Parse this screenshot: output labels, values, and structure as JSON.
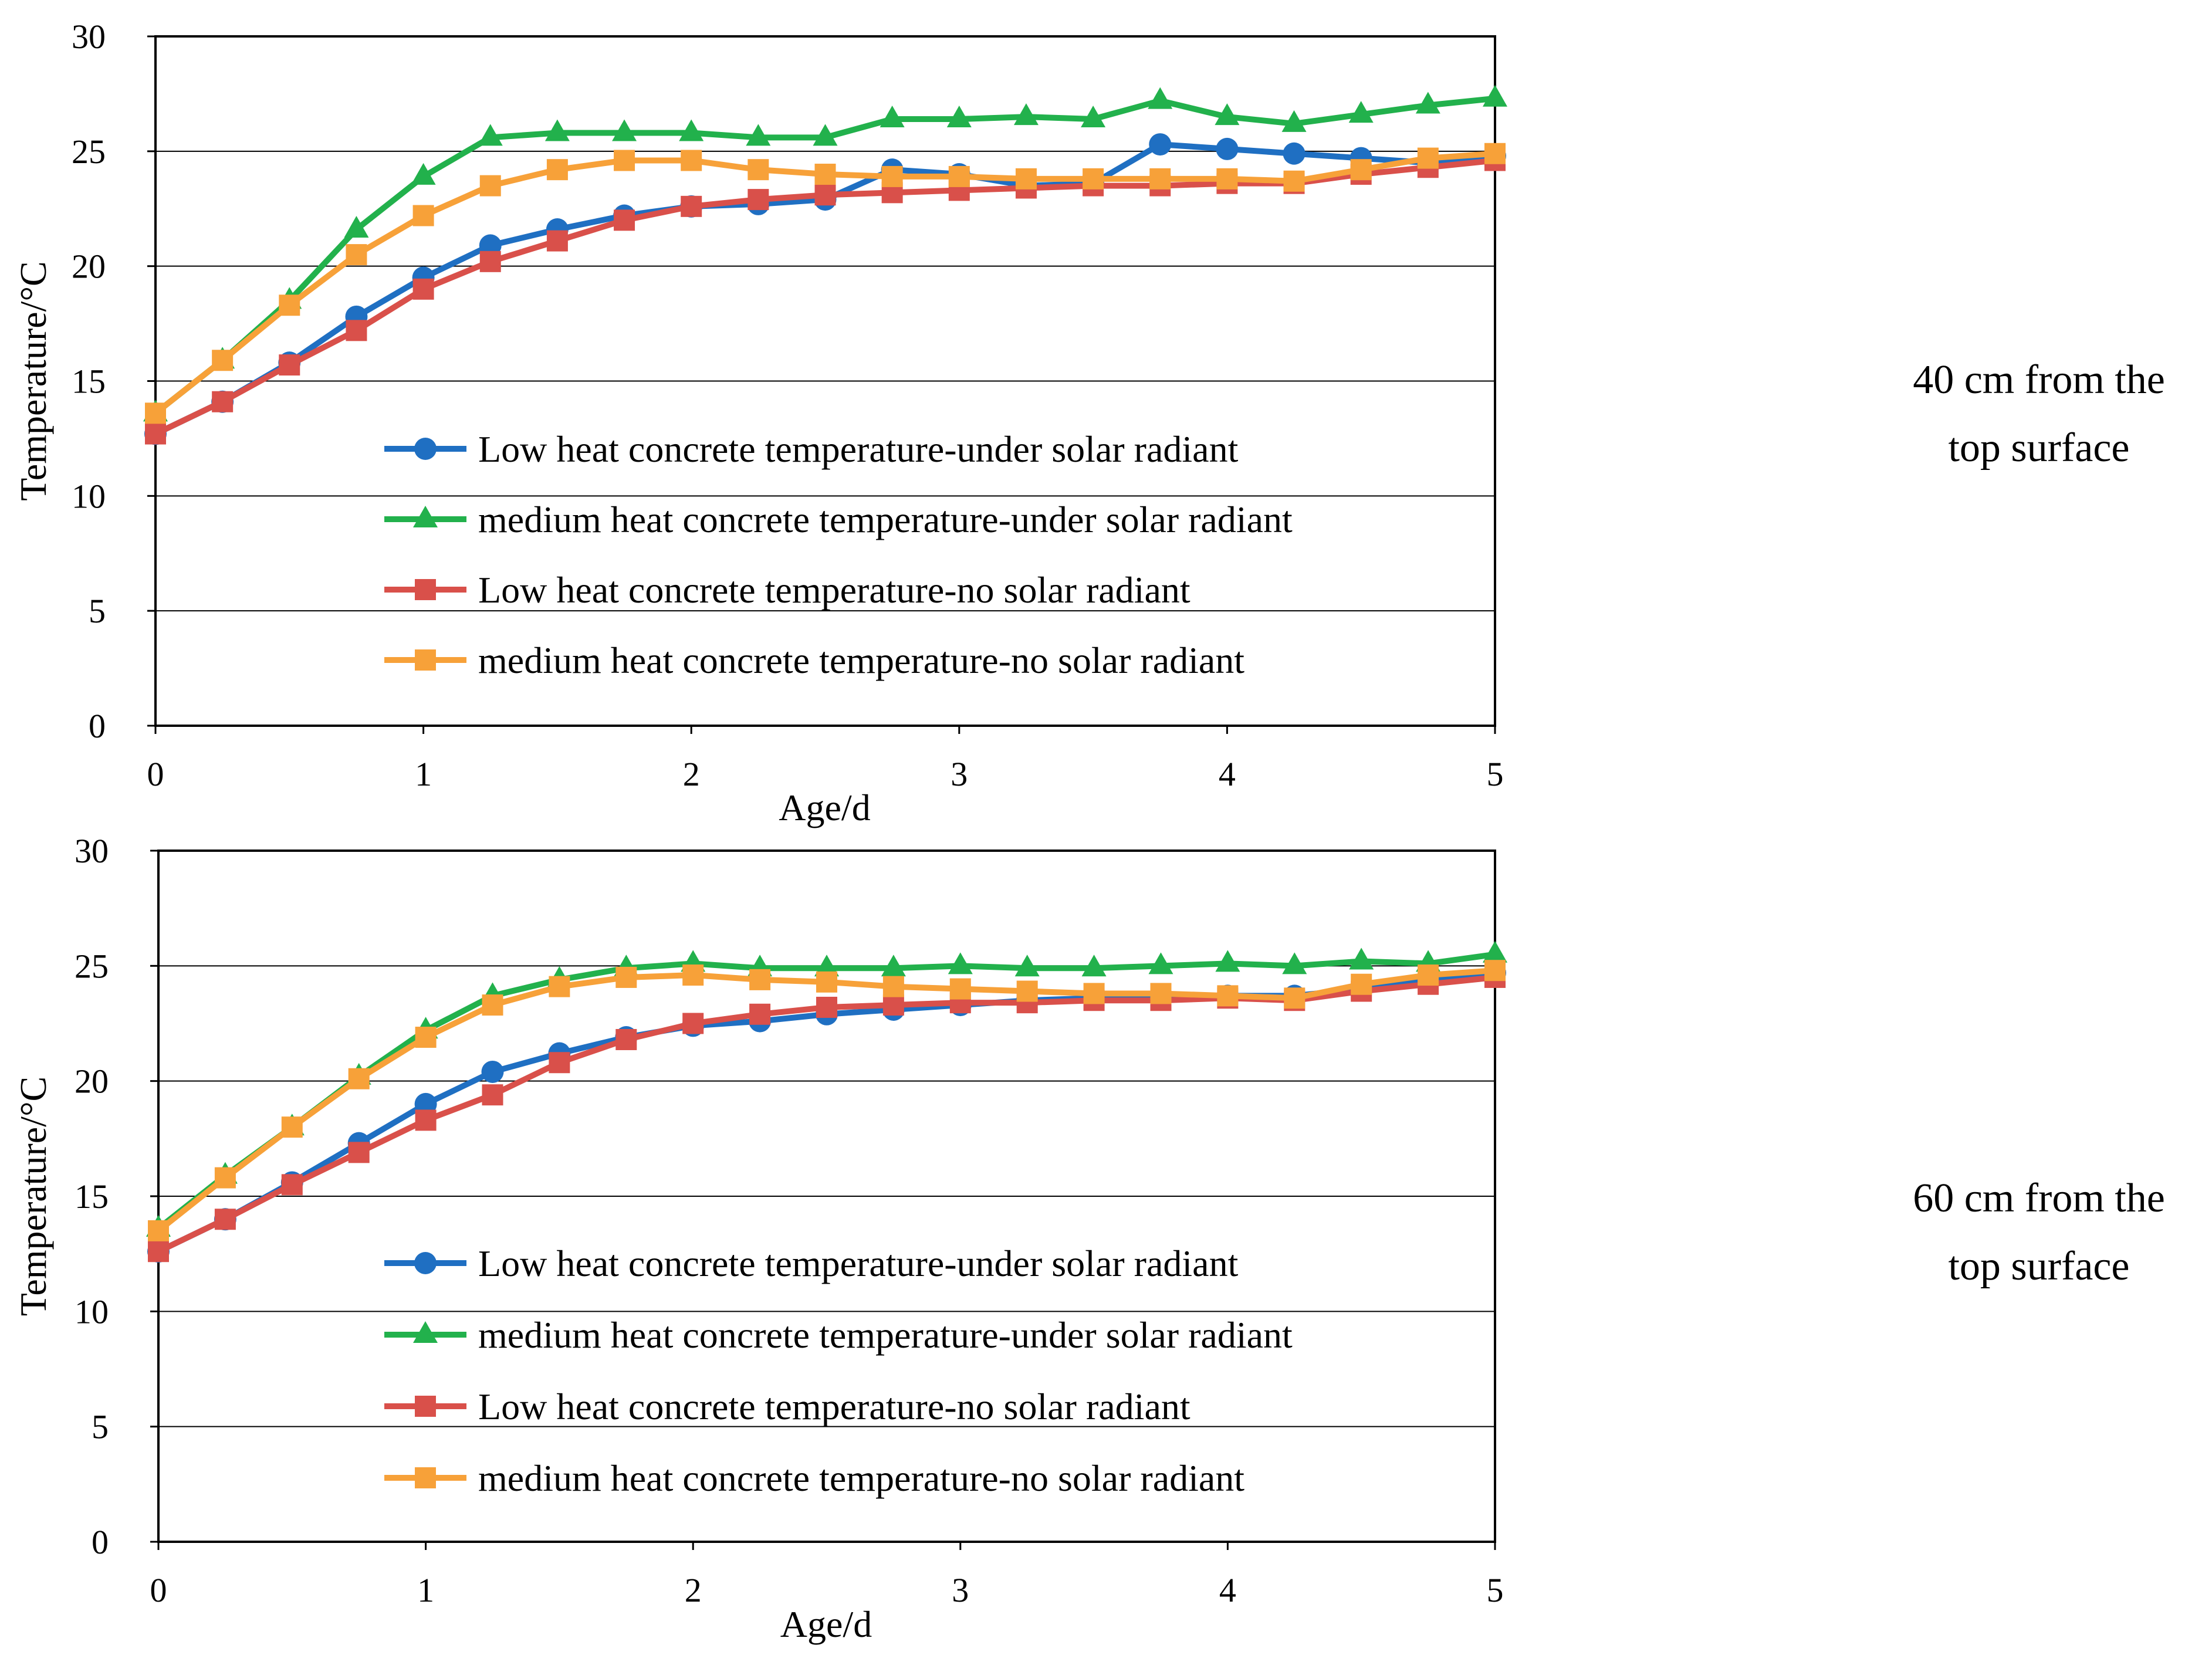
{
  "chart_data": [
    {
      "type": "line",
      "side_label": [
        "40 cm from the",
        "top surface"
      ],
      "xlabel": "Age/d",
      "ylabel": "Temperature/°C",
      "xlim": [
        0,
        5
      ],
      "ylim": [
        0,
        30
      ],
      "xticks": [
        "0",
        "1",
        "2",
        "3",
        "4",
        "5"
      ],
      "yticks": [
        "0",
        "5",
        "10",
        "15",
        "20",
        "25",
        "30"
      ],
      "grid": "horizontal",
      "legend_position": "lower-middle",
      "x": [
        0,
        0.25,
        0.5,
        0.75,
        1,
        1.25,
        1.5,
        1.75,
        2,
        2.25,
        2.5,
        2.75,
        3,
        3.25,
        3.5,
        3.75,
        4,
        4.25,
        4.5,
        4.75,
        5
      ],
      "series": [
        {
          "name": "Low heat concrete temperature-under solar radiant",
          "color": "#1f6fc2",
          "marker": "circle",
          "values": [
            12.7,
            14.1,
            15.8,
            17.8,
            19.5,
            20.9,
            21.6,
            22.2,
            22.6,
            22.7,
            22.9,
            24.2,
            24.0,
            23.5,
            23.6,
            25.3,
            25.1,
            24.9,
            24.7,
            24.5,
            24.8
          ]
        },
        {
          "name": "medium heat concrete temperature-under solar radiant",
          "color": "#22b14c",
          "marker": "triangle",
          "values": [
            13.6,
            15.9,
            18.5,
            21.6,
            23.9,
            25.6,
            25.8,
            25.8,
            25.8,
            25.6,
            25.6,
            26.4,
            26.4,
            26.5,
            26.4,
            27.2,
            26.5,
            26.2,
            26.6,
            27.0,
            27.3
          ]
        },
        {
          "name": "Low heat concrete temperature-no solar radiant",
          "color": "#d9504a",
          "marker": "square",
          "values": [
            12.7,
            14.1,
            15.7,
            17.2,
            19.0,
            20.2,
            21.1,
            22.0,
            22.6,
            22.9,
            23.1,
            23.2,
            23.3,
            23.4,
            23.5,
            23.5,
            23.6,
            23.6,
            24.0,
            24.3,
            24.6
          ]
        },
        {
          "name": "medium heat concrete temperature-no solar radiant",
          "color": "#f7a139",
          "marker": "square",
          "values": [
            13.6,
            15.9,
            18.3,
            20.5,
            22.2,
            23.5,
            24.2,
            24.6,
            24.6,
            24.2,
            24.0,
            23.9,
            23.9,
            23.8,
            23.8,
            23.8,
            23.8,
            23.7,
            24.2,
            24.7,
            24.9
          ]
        }
      ]
    },
    {
      "type": "line",
      "side_label": [
        "60 cm from the",
        "top surface"
      ],
      "xlabel": "Age/d",
      "ylabel": "Temperature/°C",
      "xlim": [
        0,
        5
      ],
      "ylim": [
        0,
        30
      ],
      "xticks": [
        "0",
        "1",
        "2",
        "3",
        "4",
        "5"
      ],
      "yticks": [
        "0",
        "5",
        "10",
        "15",
        "20",
        "25",
        "30"
      ],
      "grid": "horizontal",
      "legend_position": "lower-middle",
      "x": [
        0,
        0.25,
        0.5,
        0.75,
        1,
        1.25,
        1.5,
        1.75,
        2,
        2.25,
        2.5,
        2.75,
        3,
        3.25,
        3.5,
        3.75,
        4,
        4.25,
        4.5,
        4.75,
        5
      ],
      "series": [
        {
          "name": "Low heat concrete temperature-under solar radiant",
          "color": "#1f6fc2",
          "marker": "circle",
          "values": [
            12.6,
            14.0,
            15.6,
            17.3,
            19.0,
            20.4,
            21.2,
            21.9,
            22.4,
            22.6,
            22.9,
            23.1,
            23.3,
            23.5,
            23.6,
            23.7,
            23.7,
            23.7,
            24.0,
            24.4,
            24.7
          ]
        },
        {
          "name": "medium heat concrete temperature-under solar radiant",
          "color": "#22b14c",
          "marker": "triangle",
          "values": [
            13.6,
            15.9,
            18.0,
            20.2,
            22.2,
            23.7,
            24.4,
            24.9,
            25.1,
            24.9,
            24.9,
            24.9,
            25.0,
            24.9,
            24.9,
            25.0,
            25.1,
            25.0,
            25.2,
            25.1,
            25.5
          ]
        },
        {
          "name": "Low heat concrete temperature-no solar radiant",
          "color": "#d9504a",
          "marker": "square",
          "values": [
            12.6,
            14.0,
            15.5,
            16.9,
            18.3,
            19.4,
            20.8,
            21.8,
            22.5,
            22.9,
            23.2,
            23.3,
            23.4,
            23.4,
            23.5,
            23.5,
            23.6,
            23.5,
            23.9,
            24.2,
            24.5
          ]
        },
        {
          "name": "medium heat concrete temperature-no solar radiant",
          "color": "#f7a139",
          "marker": "square",
          "values": [
            13.5,
            15.8,
            18.0,
            20.1,
            21.9,
            23.3,
            24.1,
            24.5,
            24.6,
            24.4,
            24.3,
            24.1,
            24.0,
            23.9,
            23.8,
            23.8,
            23.7,
            23.6,
            24.2,
            24.6,
            24.8
          ]
        }
      ]
    }
  ]
}
